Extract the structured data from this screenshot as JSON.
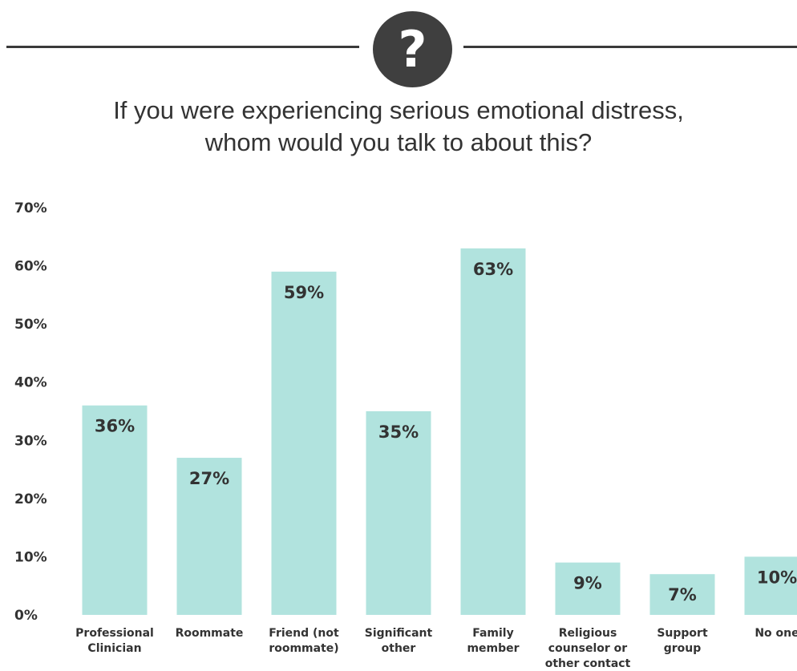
{
  "header": {
    "icon": "question-mark-icon",
    "icon_glyph": "?",
    "title_line1": "If you were experiencing serious emotional distress,",
    "title_line2": "whom would you talk to about this?"
  },
  "chart_data": {
    "type": "bar",
    "title": "If you were experiencing serious emotional distress, whom would you talk to about this?",
    "xlabel": "",
    "ylabel": "",
    "ylim": [
      0,
      70
    ],
    "yticks": [
      "0%",
      "10%",
      "20%",
      "30%",
      "40%",
      "50%",
      "60%",
      "70%"
    ],
    "grid": false,
    "legend": "none",
    "bar_color": "#b1e3de",
    "categories": [
      [
        "Professional",
        "Clinician"
      ],
      [
        "Roommate"
      ],
      [
        "Friend (not",
        "roommate)"
      ],
      [
        "Significant",
        "other"
      ],
      [
        "Family",
        "member"
      ],
      [
        "Religious",
        "counselor or",
        "other contact"
      ],
      [
        "Support",
        "group"
      ],
      [
        "No one"
      ]
    ],
    "values": [
      36,
      27,
      59,
      35,
      63,
      9,
      7,
      10
    ],
    "value_labels": [
      "36%",
      "27%",
      "59%",
      "35%",
      "63%",
      "9%",
      "7%",
      "10%"
    ]
  }
}
